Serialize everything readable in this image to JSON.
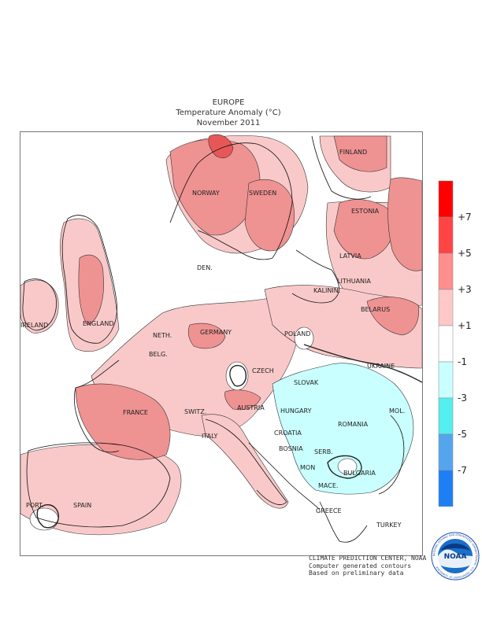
{
  "title": {
    "region": "EUROPE",
    "variable": "Temperature Anomaly (°C)",
    "period": "November 2011"
  },
  "countries": {
    "finland": "FINLAND",
    "norway": "NORWAY",
    "sweden": "SWEDEN",
    "estonia": "ESTONIA",
    "latvia": "LATVIA",
    "lithuania": "LITHUANIA",
    "kalinin": "KALININ.",
    "belarus": "BELARUS",
    "den": "DEN.",
    "ireland": "IRELAND",
    "england": "ENGLAND",
    "neth": "NETH.",
    "germany": "GERMANY",
    "poland": "POLAND",
    "belg": "BELG.",
    "czech": "CZECH",
    "slovak": "SLOVAK",
    "ukraine": "UKRAINE",
    "france": "FRANCE",
    "switz": "SWITZ.",
    "austria": "AUSTRIA",
    "hungary": "HUNGARY",
    "mol": "MOL.",
    "romania": "ROMANIA",
    "croatia": "CROATIA",
    "italy": "ITALY",
    "bosnia": "BOSNIA",
    "serb": "SERB.",
    "mon": "MON",
    "bulgaria": "BULGARIA",
    "mace": "MACE.",
    "port": "PORT.",
    "spain": "SPAIN",
    "greece": "GREECE",
    "turkey": "TURKEY"
  },
  "legend": {
    "bins": [
      {
        "label": "",
        "color": "#ff0000"
      },
      {
        "label": "+7",
        "color": "#ff4444"
      },
      {
        "label": "+5",
        "color": "#ff8e8e"
      },
      {
        "label": "+3",
        "color": "#ffc8c8"
      },
      {
        "label": "+1",
        "color": "#ffffff"
      },
      {
        "label": "-1",
        "color": "#c9ffff"
      },
      {
        "label": "-3",
        "color": "#55eeee"
      },
      {
        "label": "-5",
        "color": "#55a5ee"
      },
      {
        "label": "-7",
        "color": "#1e7ff5"
      }
    ]
  },
  "credits": {
    "line1": "CLIMATE PREDICTION CENTER, NOAA",
    "line2": "Computer generated contours",
    "line3": "Based on preliminary data"
  },
  "logo": {
    "text": "NOAA",
    "ring": "NATIONAL OCEANIC AND ATMOSPHERIC ADMINISTRATION · U.S. DEPARTMENT OF COMMERCE"
  },
  "colors": {
    "light_pink": "#f9c9c9",
    "mid_pink": "#ef9292",
    "dark_red": "#e85757",
    "light_cyan": "#c9ffff"
  }
}
